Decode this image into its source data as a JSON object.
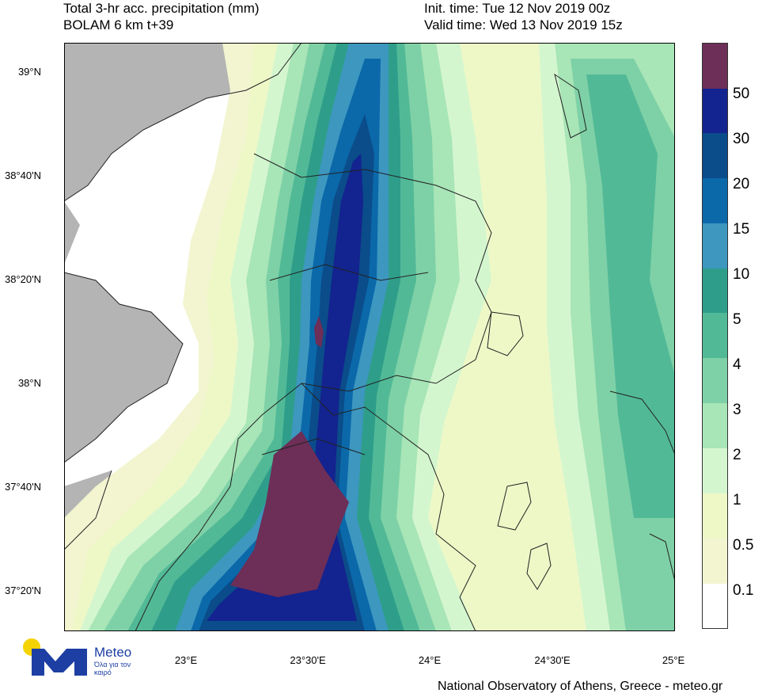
{
  "header": {
    "title_line1": "Total 3-hr acc. precipitation (mm)",
    "title_line2": "BOLAM 6 km t+39",
    "init_time": "Init. time: Tue 12 Nov 2019 00z",
    "valid_time": "Valid time: Wed 13 Nov 2019 15z"
  },
  "axes": {
    "lat_labels": [
      "39°N",
      "38°40'N",
      "38°20'N",
      "38°N",
      "37°40'N",
      "37°20'N"
    ],
    "lon_labels": [
      "23°E",
      "23°30'E",
      "24°E",
      "24°30'E",
      "25°E"
    ]
  },
  "legend": {
    "labels": [
      "50",
      "30",
      "20",
      "15",
      "10",
      "5",
      "4",
      "3",
      "2",
      "1",
      "0.5",
      "0.1"
    ],
    "colors": [
      "#6d2e57",
      "#13238f",
      "#0b4c8a",
      "#0b69aa",
      "#3d97bf",
      "#2e9e8a",
      "#52b997",
      "#7ed1a6",
      "#a8e5b7",
      "#d4f6cf",
      "#eef8c7",
      "#f2f5d0",
      "#ffffff"
    ]
  },
  "colors": {
    "land": "#b4b4b4",
    "coast": "#222222"
  },
  "logo": {
    "name": "Meteo",
    "tagline": "Όλα για τον καιρό",
    "icon": "meteo-m-sun-logo"
  },
  "footer": "National Observatory of Athens, Greece - meteo.gr"
}
